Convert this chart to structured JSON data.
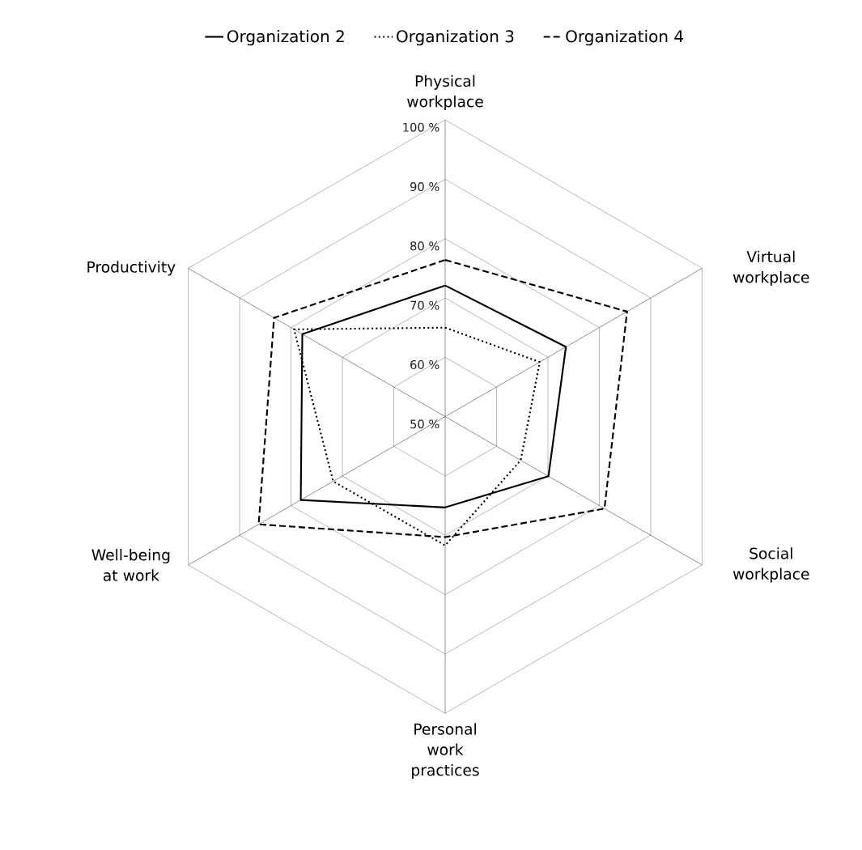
{
  "chart_data": {
    "type": "radar",
    "categories": [
      "Physical workplace",
      "Virtual workplace",
      "Social workplace",
      "Personal work practices",
      "Well-being at work",
      "Productivity"
    ],
    "series": [
      {
        "name": "Organization 2",
        "color": "#000000",
        "line_style": "solid",
        "values": [
          72.1,
          73.5,
          70.1,
          65.3,
          78.1,
          77.8
        ]
      },
      {
        "name": "Organization 3",
        "color": "#000000",
        "line_style": "dotted",
        "values": [
          65.0,
          68.4,
          64.7,
          71.7,
          71.8,
          79.4
        ]
      },
      {
        "name": "Organization 4",
        "color": "#000000",
        "line_style": "dashed",
        "values": [
          76.4,
          85.4,
          81.0,
          70.3,
          86.3,
          83.3
        ]
      }
    ],
    "ylim": [
      50,
      100
    ],
    "yticks": [
      {
        "value": 50,
        "label": "50 %"
      },
      {
        "value": 60,
        "label": "60 %"
      },
      {
        "value": 70,
        "label": "70 %"
      },
      {
        "value": 80,
        "label": "80 %"
      },
      {
        "value": 90,
        "label": "90 %"
      },
      {
        "value": 100,
        "label": "100 %"
      }
    ],
    "grid": true,
    "legend": "top",
    "marker": "none"
  }
}
